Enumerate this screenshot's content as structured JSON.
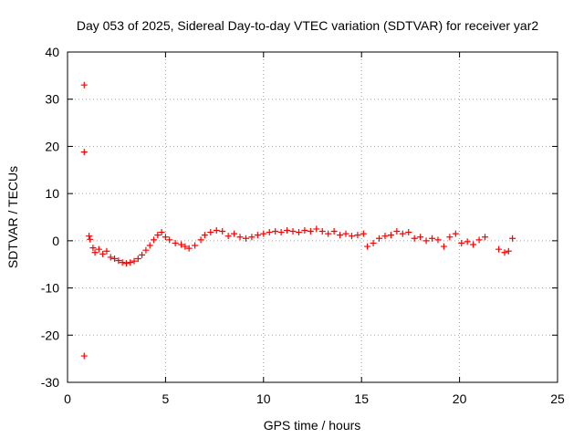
{
  "chart_data": {
    "type": "scatter",
    "title": "Day 053 of 2025, Sidereal Day-to-day VTEC variation (SDTVAR) for receiver yar2",
    "xlabel": "GPS time / hours",
    "ylabel": "SDTVAR / TECUs",
    "xlim": [
      0,
      25
    ],
    "ylim": [
      -30,
      40
    ],
    "xticks": [
      0,
      5,
      10,
      15,
      20,
      25
    ],
    "yticks": [
      -30,
      -20,
      -10,
      0,
      10,
      20,
      30,
      40
    ],
    "xtick_labels": [
      "0",
      "5",
      "10",
      "15",
      "20",
      "25"
    ],
    "ytick_labels": [
      "-30",
      "-20",
      "-10",
      "0",
      "10",
      "20",
      "30",
      "40"
    ],
    "grid": true,
    "marker": "+",
    "series": [
      {
        "name": "SDTVAR",
        "color": "#ff0000",
        "points": [
          [
            0.85,
            33.0
          ],
          [
            0.85,
            18.8
          ],
          [
            0.85,
            -24.4
          ],
          [
            1.1,
            1.0
          ],
          [
            1.15,
            0.3
          ],
          [
            1.3,
            -1.5
          ],
          [
            1.4,
            -2.5
          ],
          [
            1.6,
            -1.8
          ],
          [
            1.8,
            -2.8
          ],
          [
            2.0,
            -2.2
          ],
          [
            2.2,
            -3.5
          ],
          [
            2.4,
            -3.8
          ],
          [
            2.6,
            -4.2
          ],
          [
            2.8,
            -4.6
          ],
          [
            3.0,
            -4.8
          ],
          [
            3.2,
            -4.6
          ],
          [
            3.4,
            -4.3
          ],
          [
            3.6,
            -3.8
          ],
          [
            3.8,
            -3.0
          ],
          [
            4.0,
            -2.0
          ],
          [
            4.2,
            -1.0
          ],
          [
            4.4,
            0.2
          ],
          [
            4.6,
            1.2
          ],
          [
            4.8,
            1.8
          ],
          [
            5.0,
            0.8
          ],
          [
            5.2,
            0.2
          ],
          [
            5.5,
            -0.5
          ],
          [
            5.8,
            -0.8
          ],
          [
            6.0,
            -1.2
          ],
          [
            6.2,
            -1.6
          ],
          [
            6.5,
            -1.0
          ],
          [
            6.8,
            0.2
          ],
          [
            7.0,
            1.2
          ],
          [
            7.3,
            1.8
          ],
          [
            7.6,
            2.2
          ],
          [
            7.9,
            2.0
          ],
          [
            8.2,
            1.0
          ],
          [
            8.5,
            1.5
          ],
          [
            8.8,
            0.8
          ],
          [
            9.1,
            0.5
          ],
          [
            9.4,
            0.8
          ],
          [
            9.7,
            1.2
          ],
          [
            10.0,
            1.5
          ],
          [
            10.3,
            1.8
          ],
          [
            10.6,
            2.0
          ],
          [
            10.9,
            1.8
          ],
          [
            11.2,
            2.2
          ],
          [
            11.5,
            2.0
          ],
          [
            11.8,
            1.8
          ],
          [
            12.1,
            2.2
          ],
          [
            12.4,
            2.0
          ],
          [
            12.7,
            2.5
          ],
          [
            13.0,
            2.0
          ],
          [
            13.3,
            1.5
          ],
          [
            13.6,
            2.0
          ],
          [
            13.9,
            1.2
          ],
          [
            14.2,
            1.5
          ],
          [
            14.5,
            1.0
          ],
          [
            14.8,
            1.2
          ],
          [
            15.1,
            1.5
          ],
          [
            15.3,
            -1.2
          ],
          [
            15.6,
            -0.5
          ],
          [
            15.9,
            0.5
          ],
          [
            16.2,
            1.0
          ],
          [
            16.5,
            1.2
          ],
          [
            16.8,
            2.0
          ],
          [
            17.1,
            1.5
          ],
          [
            17.4,
            1.8
          ],
          [
            17.7,
            0.5
          ],
          [
            18.0,
            0.8
          ],
          [
            18.3,
            0.0
          ],
          [
            18.6,
            0.5
          ],
          [
            18.9,
            0.2
          ],
          [
            19.2,
            -1.2
          ],
          [
            19.5,
            0.8
          ],
          [
            19.8,
            1.5
          ],
          [
            20.1,
            -0.5
          ],
          [
            20.4,
            -0.2
          ],
          [
            20.7,
            -0.8
          ],
          [
            21.0,
            0.2
          ],
          [
            21.3,
            0.8
          ],
          [
            22.0,
            -1.8
          ],
          [
            22.3,
            -2.5
          ],
          [
            22.5,
            -2.2
          ],
          [
            22.7,
            0.5
          ]
        ]
      }
    ]
  }
}
